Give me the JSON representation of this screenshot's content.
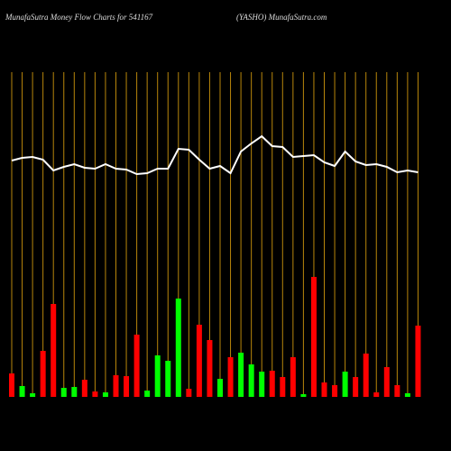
{
  "chart_data": {
    "type": "money-flow",
    "title": "MunafaSutra  Money Flow  Charts for 541167",
    "subtitle": "(YASHO) MunafaSutra.com",
    "bars": {
      "values": [
        26,
        12,
        4,
        51,
        103,
        10,
        11,
        19,
        6,
        5,
        24,
        23,
        69,
        7,
        46,
        40,
        109,
        9,
        80,
        63,
        20,
        44,
        49,
        36,
        28,
        29,
        22,
        44,
        3,
        133,
        16,
        13,
        28,
        22,
        48,
        5,
        33,
        13,
        4,
        79
      ],
      "colors": [
        "#ff0000",
        "#00ff00",
        "#00ff00",
        "#ff0000",
        "#ff0000",
        "#00ff00",
        "#00ff00",
        "#ff0000",
        "#ff0000",
        "#00ff00",
        "#ff0000",
        "#ff0000",
        "#ff0000",
        "#00ff00",
        "#00ff00",
        "#00ff00",
        "#00ff00",
        "#ff0000",
        "#ff0000",
        "#ff0000",
        "#00ff00",
        "#ff0000",
        "#00ff00",
        "#00ff00",
        "#00ff00",
        "#ff0000",
        "#ff0000",
        "#ff0000",
        "#00ff00",
        "#ff0000",
        "#ff0000",
        "#ff0000",
        "#00ff00",
        "#ff0000",
        "#ff0000",
        "#ff0000",
        "#ff0000",
        "#ff0000",
        "#00ff00",
        "#ff0000"
      ]
    },
    "line": {
      "color": "#ffffff",
      "values": [
        262,
        265,
        266,
        263,
        251,
        255,
        258,
        254,
        253,
        258,
        253,
        252,
        247,
        248,
        253,
        253,
        275,
        274,
        263,
        253,
        256,
        248,
        272,
        281,
        289,
        278,
        277,
        266,
        267,
        268,
        260,
        256,
        272,
        261,
        257,
        258,
        255,
        249,
        251,
        249
      ]
    },
    "gridline_color": "#b8860b"
  }
}
